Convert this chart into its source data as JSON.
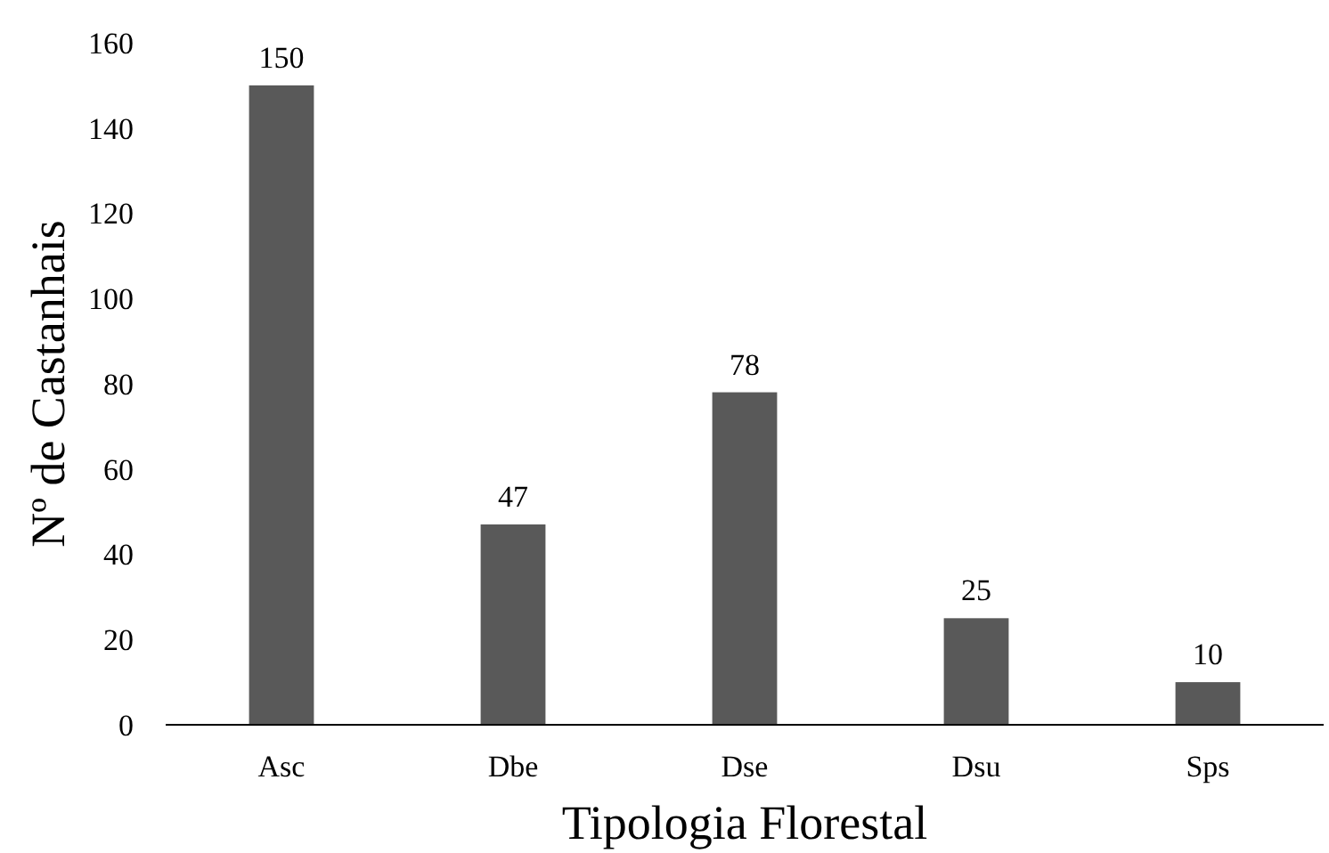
{
  "chart_data": {
    "type": "bar",
    "xlabel": "Tipologia Florestal",
    "ylabel": "Nº de Castanhais",
    "categories": [
      "Asc",
      "Dbe",
      "Dse",
      "Dsu",
      "Sps"
    ],
    "values": [
      150,
      47,
      78,
      25,
      10
    ],
    "color": "#595959",
    "data_labels": true,
    "ylim": [
      0,
      160
    ],
    "yticks": [
      0,
      20,
      40,
      60,
      80,
      100,
      120,
      140,
      160
    ],
    "grid": false
  }
}
